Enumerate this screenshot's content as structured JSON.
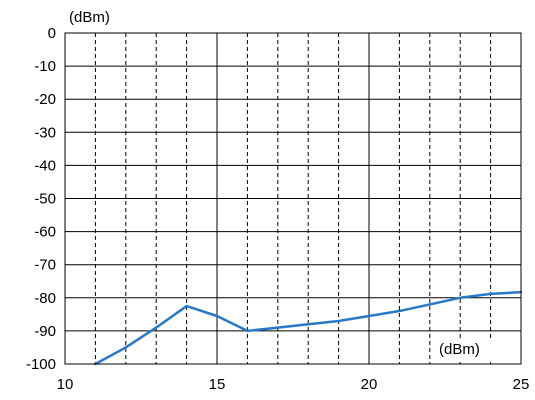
{
  "chart_data": {
    "type": "line",
    "title": "",
    "y_unit_label": "(dBm)",
    "x_unit_label": "(dBm)",
    "xlim": [
      10,
      25
    ],
    "ylim": [
      -100,
      0
    ],
    "x_ticks": [
      10,
      15,
      20,
      25
    ],
    "y_ticks": [
      0,
      -10,
      -20,
      -30,
      -40,
      -50,
      -60,
      -70,
      -80,
      -90,
      -100
    ],
    "x_tick_labels": [
      "10",
      "15",
      "20",
      "25"
    ],
    "y_tick_labels": [
      "0",
      "-10",
      "-20",
      "-30",
      "-40",
      "-50",
      "-60",
      "-70",
      "-80",
      "-90",
      "-100"
    ],
    "grid": {
      "major_x": [
        10,
        15,
        20,
        25
      ],
      "minor_x": [
        11,
        12,
        13,
        14,
        16,
        17,
        18,
        19,
        21,
        22,
        23,
        24
      ],
      "major_y": [
        0,
        -10,
        -20,
        -30,
        -40,
        -50,
        -60,
        -70,
        -80,
        -90,
        -100
      ]
    },
    "series": [
      {
        "color": "#2878c8",
        "x": [
          11,
          12,
          13,
          14,
          15,
          16,
          17,
          18,
          19,
          20,
          21,
          22,
          23,
          24,
          25
        ],
        "y": [
          -100,
          -95,
          -89,
          -82.5,
          -85.5,
          -90,
          -89,
          -88,
          -87,
          -85.5,
          -84,
          -82,
          -80,
          -78.8,
          -78.3
        ]
      }
    ]
  }
}
